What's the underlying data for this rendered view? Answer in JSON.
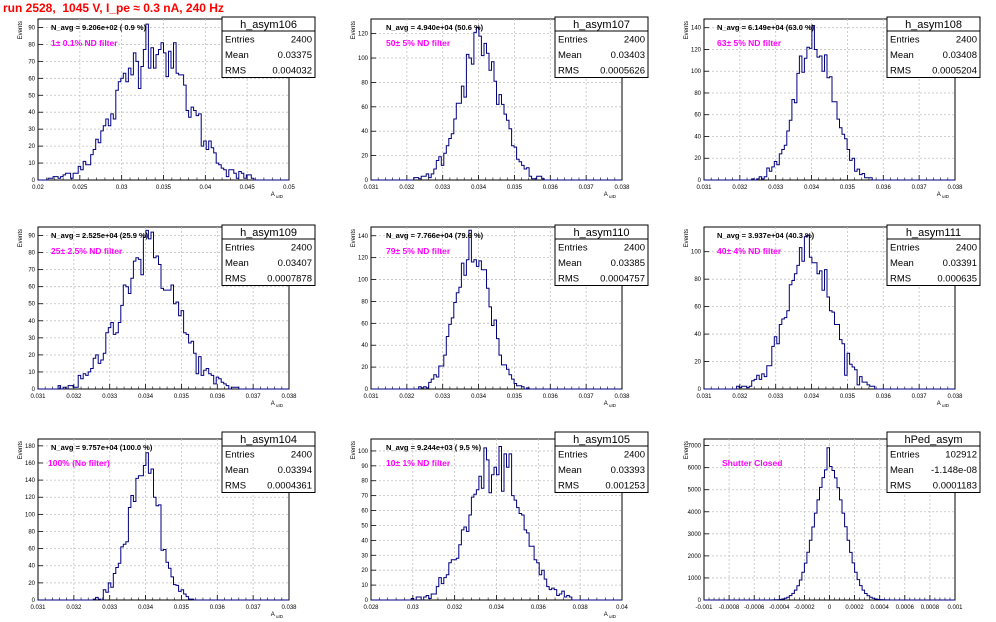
{
  "run_title": "run 2528,  1045 V, I_pe ≈ 0.3 nA, 240 Hz",
  "colors": {
    "histogram_line": "#000080",
    "filter_label": "#ff00ff",
    "title": "#ff0000",
    "grid": "#c0c0c0"
  },
  "chart_data": [
    {
      "type": "histogram",
      "name": "h_asym106",
      "stats": [
        {
          "label": "Entries",
          "value": "2400"
        },
        {
          "label": "Mean",
          "value": "0.03375"
        },
        {
          "label": "RMS",
          "value": "0.004032"
        }
      ],
      "navg": "N_avg = 9.206e+02 ( 0.9 %)",
      "filter": "1± 0.1% ND filter",
      "ylabel": "Events",
      "xlabel": "A_uID",
      "xlim": [
        0.02,
        0.05
      ],
      "xticks": [
        "0.02",
        "0.025",
        "0.03",
        "0.035",
        "0.04",
        "0.045",
        "0.05"
      ],
      "ylim": [
        0,
        95
      ],
      "yticks": [
        "0",
        "10",
        "20",
        "30",
        "40",
        "50",
        "60",
        "70",
        "80",
        "90"
      ],
      "mean": 0.03375,
      "rms": 0.004032,
      "peak": 92,
      "grid": true
    },
    {
      "type": "histogram",
      "name": "h_asym107",
      "stats": [
        {
          "label": "Entries",
          "value": "2400"
        },
        {
          "label": "Mean",
          "value": "0.03403"
        },
        {
          "label": "RMS",
          "value": "0.0005626"
        }
      ],
      "navg": "N_avg = 4.940e+04 (50.6 %)",
      "filter": "50± 5% ND filter",
      "ylabel": "Events",
      "xlabel": "A_uID",
      "xlim": [
        0.031,
        0.038
      ],
      "xticks": [
        "0.031",
        "0.032",
        "0.033",
        "0.034",
        "0.035",
        "0.036",
        "0.037",
        "0.038"
      ],
      "ylim": [
        0,
        132
      ],
      "yticks": [
        "0",
        "20",
        "40",
        "60",
        "80",
        "100",
        "120"
      ],
      "mean": 0.03403,
      "rms": 0.0005626,
      "peak": 125,
      "grid": true
    },
    {
      "type": "histogram",
      "name": "h_asym108",
      "stats": [
        {
          "label": "Entries",
          "value": "2400"
        },
        {
          "label": "Mean",
          "value": "0.03408"
        },
        {
          "label": "RMS",
          "value": "0.0005204"
        }
      ],
      "navg": "N_avg = 6.149e+04 (63.0 %)",
      "filter": "63± 5% ND filter",
      "ylabel": "Events",
      "xlabel": "A_uID",
      "xlim": [
        0.031,
        0.038
      ],
      "xticks": [
        "0.031",
        "0.032",
        "0.033",
        "0.034",
        "0.035",
        "0.036",
        "0.037",
        "0.038"
      ],
      "ylim": [
        0,
        148
      ],
      "yticks": [
        "0",
        "20",
        "40",
        "60",
        "80",
        "100",
        "120",
        "140"
      ],
      "mean": 0.03408,
      "rms": 0.0005204,
      "peak": 142,
      "grid": true
    },
    {
      "type": "histogram",
      "name": "h_asym109",
      "stats": [
        {
          "label": "Entries",
          "value": "2400"
        },
        {
          "label": "Mean",
          "value": "0.03407"
        },
        {
          "label": "RMS",
          "value": "0.0007878"
        }
      ],
      "navg": "N_avg = 2.525e+04 (25.9 %)",
      "filter": "25± 2.5% ND filter",
      "ylabel": "Events",
      "xlabel": "A_uID",
      "xlim": [
        0.031,
        0.038
      ],
      "xticks": [
        "0.031",
        "0.032",
        "0.033",
        "0.034",
        "0.035",
        "0.036",
        "0.037",
        "0.038"
      ],
      "ylim": [
        0,
        95
      ],
      "yticks": [
        "0",
        "10",
        "20",
        "30",
        "40",
        "50",
        "60",
        "70",
        "80",
        "90"
      ],
      "mean": 0.03407,
      "rms": 0.0007878,
      "peak": 92,
      "grid": true
    },
    {
      "type": "histogram",
      "name": "h_asym110",
      "stats": [
        {
          "label": "Entries",
          "value": "2400"
        },
        {
          "label": "Mean",
          "value": "0.03385"
        },
        {
          "label": "RMS",
          "value": "0.0004757"
        }
      ],
      "navg": "N_avg = 7.766e+04 (79.6 %)",
      "filter": "79± 5% ND filter",
      "ylabel": "Events",
      "xlabel": "A_uID",
      "xlim": [
        0.031,
        0.038
      ],
      "xticks": [
        "0.031",
        "0.032",
        "0.033",
        "0.034",
        "0.035",
        "0.036",
        "0.037",
        "0.038"
      ],
      "ylim": [
        0,
        148
      ],
      "yticks": [
        "0",
        "20",
        "40",
        "60",
        "80",
        "100",
        "120",
        "140"
      ],
      "mean": 0.03385,
      "rms": 0.0004757,
      "peak": 145,
      "grid": true
    },
    {
      "type": "histogram",
      "name": "h_asym111",
      "stats": [
        {
          "label": "Entries",
          "value": "2400"
        },
        {
          "label": "Mean",
          "value": "0.03391"
        },
        {
          "label": "RMS",
          "value": "0.000635"
        }
      ],
      "navg": "N_avg = 3.937e+04 (40.3 %)",
      "filter": "40± 4% ND filter",
      "ylabel": "Events",
      "xlabel": "A_uID",
      "xlim": [
        0.031,
        0.038
      ],
      "xticks": [
        "0.031",
        "0.032",
        "0.033",
        "0.034",
        "0.035",
        "0.036",
        "0.037",
        "0.038"
      ],
      "ylim": [
        0,
        118
      ],
      "yticks": [
        "0",
        "20",
        "40",
        "60",
        "80",
        "100"
      ],
      "mean": 0.03391,
      "rms": 0.000635,
      "peak": 112,
      "grid": true
    },
    {
      "type": "histogram",
      "name": "h_asym104",
      "stats": [
        {
          "label": "Entries",
          "value": "2400"
        },
        {
          "label": "Mean",
          "value": "0.03394"
        },
        {
          "label": "RMS",
          "value": "0.0004361"
        }
      ],
      "navg": "N_avg = 9.757e+04 (100.0 %)",
      "filter": "100% (No filter)",
      "ylabel": "Events",
      "xlabel": "A_uID",
      "xlim": [
        0.031,
        0.038
      ],
      "xticks": [
        "0.031",
        "0.032",
        "0.033",
        "0.034",
        "0.035",
        "0.036",
        "0.037",
        "0.038"
      ],
      "ylim": [
        0,
        188
      ],
      "yticks": [
        "0",
        "20",
        "40",
        "60",
        "80",
        "100",
        "120",
        "140",
        "160",
        "180"
      ],
      "mean": 0.03394,
      "rms": 0.0004361,
      "peak": 172,
      "grid": true
    },
    {
      "type": "histogram",
      "name": "h_asym105",
      "stats": [
        {
          "label": "Entries",
          "value": "2400"
        },
        {
          "label": "Mean",
          "value": "0.03393"
        },
        {
          "label": "RMS",
          "value": "0.001253"
        }
      ],
      "navg": "N_avg = 9.244e+03 ( 9.5 %)",
      "filter": "10± 1% ND filter",
      "ylabel": "Events",
      "xlabel": "A_uID",
      "xlim": [
        0.028,
        0.04
      ],
      "xticks": [
        "0.028",
        "0.03",
        "0.032",
        "0.034",
        "0.036",
        "0.038",
        "0.04"
      ],
      "ylim": [
        0,
        108
      ],
      "yticks": [
        "0",
        "10",
        "20",
        "30",
        "40",
        "50",
        "60",
        "70",
        "80",
        "90",
        "100"
      ],
      "mean": 0.03393,
      "rms": 0.001253,
      "peak": 103,
      "grid": true
    },
    {
      "type": "histogram",
      "name": "hPed_asym",
      "stats": [
        {
          "label": "Entries",
          "value": "102912"
        },
        {
          "label": "Mean",
          "value": "-1.148e-08"
        },
        {
          "label": "RMS",
          "value": "0.0001183"
        }
      ],
      "navg": "",
      "filter": "Shutter Closed",
      "ylabel": "Events",
      "xlabel": "",
      "xlim": [
        -0.001,
        0.001
      ],
      "xticks": [
        "-0.001",
        "-0.0008",
        "-0.0006",
        "-0.0004",
        "-0.0002",
        "0",
        "0.0002",
        "0.0004",
        "0.0006",
        "0.0008",
        "0.001"
      ],
      "ylim": [
        0,
        7300
      ],
      "yticks": [
        "0",
        "1000",
        "2000",
        "3000",
        "4000",
        "5000",
        "6000",
        "7000"
      ],
      "mean": 0,
      "rms": 0.0001183,
      "peak": 6900,
      "grid": true
    }
  ]
}
